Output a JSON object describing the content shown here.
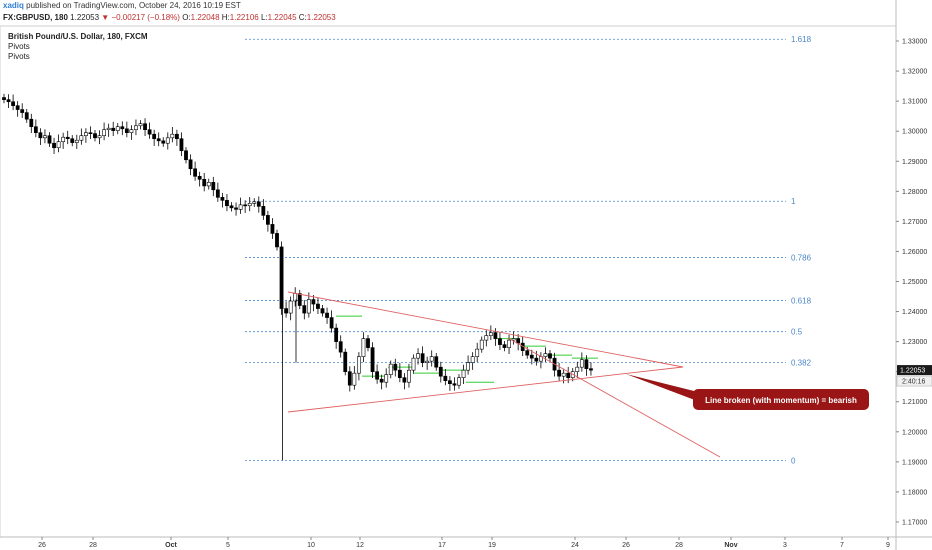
{
  "header": {
    "author": "xadiq",
    "published": "published on TradingView.com, October 24, 2016 10:19 EST"
  },
  "quote": {
    "symbol": "FX:GBPUSD, 180",
    "last": "1.22053",
    "change": "−0.00217 (−0.18%)",
    "open_label": "O:",
    "open": "1.22048",
    "high_label": "H:",
    "high": "1.22106",
    "low_label": "L:",
    "low": "1.22045",
    "close_label": "C:",
    "close": "1.22053"
  },
  "legend": {
    "title": "British Pound/U.S. Dollar, 180, FXCM",
    "indicators": [
      "Pivots",
      "Pivots"
    ]
  },
  "colors": {
    "up_candle": "#ffffff",
    "down_candle": "#000000",
    "fib_line": "#4a86c8",
    "triangle_line": "#e06060",
    "pivot_green": "#33cc33",
    "annotation_bg": "#9a1515",
    "price_tag_bg": "#1a1a1a",
    "countdown_bg": "#f0f0f0"
  },
  "chart_data": {
    "type": "candlestick",
    "y_axis": {
      "range": [
        1.165,
        1.335
      ],
      "ticks": [
        "1.33000",
        "1.32000",
        "1.31000",
        "1.30000",
        "1.29000",
        "1.28000",
        "1.27000",
        "1.26000",
        "1.25000",
        "1.24000",
        "1.23000",
        "1.22000",
        "1.21000",
        "1.20000",
        "1.19000",
        "1.18000",
        "1.17000"
      ]
    },
    "x_axis": {
      "ticks": [
        "26",
        "28",
        "Oct",
        "5",
        "10",
        "12",
        "17",
        "19",
        "24",
        "26",
        "28",
        "Nov",
        "3",
        "7",
        "9"
      ],
      "bold_ticks": [
        "Oct",
        "Nov"
      ]
    },
    "current_price": "1.22053",
    "countdown": "2:40:16",
    "fib_levels": [
      {
        "label": "1.618",
        "price": 1.3306
      },
      {
        "label": "1",
        "price": 1.2767
      },
      {
        "label": "0.786",
        "price": 1.258
      },
      {
        "label": "0.618",
        "price": 1.2437
      },
      {
        "label": "0.5",
        "price": 1.2333
      },
      {
        "label": "0.382",
        "price": 1.2231
      },
      {
        "label": "0",
        "price": 1.1905
      }
    ],
    "annotation": "Line broken (with momentum) = bearish",
    "candles_close": [
      1.3105,
      1.3098,
      1.3085,
      1.3072,
      1.3062,
      1.304,
      1.3015,
      1.2995,
      1.2978,
      1.2985,
      1.296,
      1.2945,
      1.2965,
      1.298,
      1.2975,
      1.2962,
      1.297,
      1.2985,
      1.2995,
      1.2992,
      1.2978,
      1.2985,
      1.3005,
      1.301,
      1.3002,
      1.3015,
      1.3008,
      1.2995,
      1.3005,
      1.3018,
      1.3025,
      1.3005,
      1.299,
      1.2975,
      1.2968,
      1.296,
      1.2978,
      1.299,
      1.2975,
      1.2935,
      1.2905,
      1.2875,
      1.285,
      1.284,
      1.2818,
      1.283,
      1.2805,
      1.278,
      1.277,
      1.2752,
      1.2745,
      1.274,
      1.2755,
      1.2752,
      1.276,
      1.2765,
      1.275,
      1.272,
      1.269,
      1.266,
      1.2615,
      1.241,
      1.2395,
      1.2435,
      1.246,
      1.242,
      1.2395,
      1.244,
      1.2425,
      1.241,
      1.2395,
      1.238,
      1.2345,
      1.23,
      1.2265,
      1.22,
      1.2155,
      1.2195,
      1.225,
      1.231,
      1.228,
      1.22,
      1.2175,
      1.2165,
      1.219,
      1.2225,
      1.2205,
      1.218,
      1.2165,
      1.2205,
      1.2245,
      1.226,
      1.223,
      1.2235,
      1.225,
      1.2215,
      1.2185,
      1.217,
      1.216,
      1.2155,
      1.218,
      1.2205,
      1.223,
      1.225,
      1.2275,
      1.2305,
      1.232,
      1.233,
      1.231,
      1.229,
      1.228,
      1.2305,
      1.231,
      1.2295,
      1.227,
      1.2255,
      1.2245,
      1.2235,
      1.225,
      1.226,
      1.2245,
      1.2205,
      1.2185,
      1.2195,
      1.218,
      1.22,
      1.2215,
      1.224,
      1.221,
      1.2205
    ]
  }
}
